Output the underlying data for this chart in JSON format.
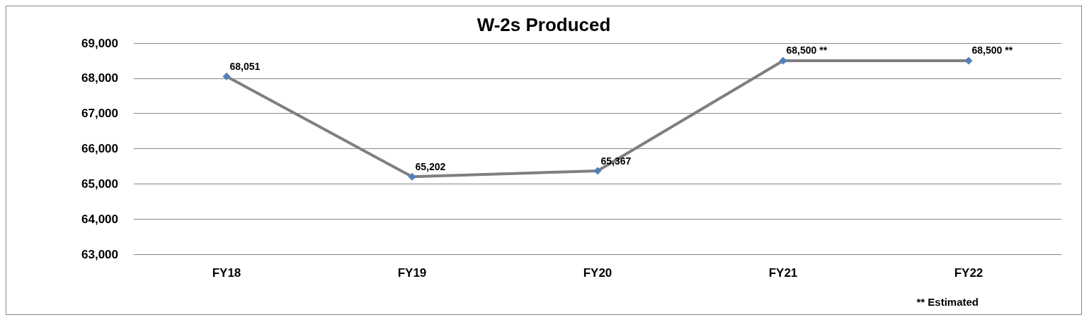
{
  "chart_data": {
    "type": "line",
    "title": "W-2s Produced",
    "categories": [
      "FY18",
      "FY19",
      "FY20",
      "FY21",
      "FY22"
    ],
    "series": [
      {
        "color": "#7f7f7f",
        "colors": [
          "#4f81bd",
          "#4f81bd",
          "#4f81bd",
          "#4f81bd",
          "#4f81bd"
        ],
        "values": [
          68051,
          65202,
          65367,
          68500,
          68500
        ],
        "value_labels": [
          "68,051",
          "65,202",
          "65,367",
          "68,500 **",
          "68,500 **"
        ]
      }
    ],
    "ylim": [
      63000,
      69000
    ],
    "yticks": [
      {
        "value": 63000,
        "label": "63,000"
      },
      {
        "value": 64000,
        "label": "64,000"
      },
      {
        "value": 65000,
        "label": "65,000"
      },
      {
        "value": 66000,
        "label": "66,000"
      },
      {
        "value": 67000,
        "label": "67,000"
      },
      {
        "value": 68000,
        "label": "68,000"
      },
      {
        "value": 69000,
        "label": "69,000"
      }
    ],
    "grid": "y",
    "marker": "diamond",
    "line_style": "solid",
    "annotations": [
      "** Estimated"
    ]
  }
}
